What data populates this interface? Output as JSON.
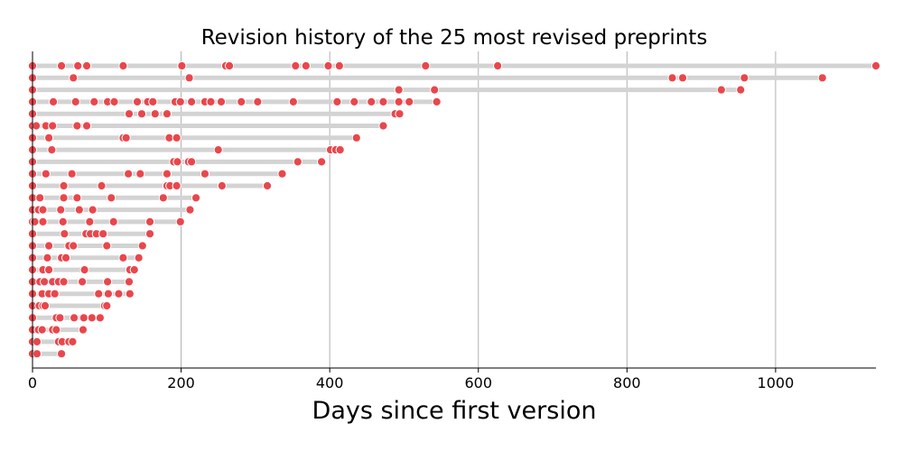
{
  "chart_data": {
    "type": "scatter",
    "title": "Revision history of the 25 most revised preprints",
    "xlabel": "Days since first version",
    "ylabel": "",
    "xlim": [
      0,
      1135
    ],
    "xticks": [
      0,
      200,
      400,
      600,
      800,
      1000
    ],
    "grid": "vertical",
    "colors": {
      "point": "#e8474c",
      "point_edge": "#ffffff",
      "bar": "#d3d3d3",
      "grid": "#b0b0b0"
    },
    "series": [
      {
        "values": [
          0,
          39,
          61,
          73,
          122,
          201,
          260,
          265,
          354,
          368,
          398,
          413,
          529,
          626,
          1135
        ]
      },
      {
        "values": [
          0,
          55,
          211,
          861,
          875,
          958,
          1063
        ]
      },
      {
        "values": [
          0,
          493,
          541,
          927,
          953
        ]
      },
      {
        "values": [
          0,
          28,
          58,
          83,
          101,
          110,
          141,
          155,
          162,
          192,
          199,
          214,
          232,
          240,
          254,
          281,
          303,
          351,
          410,
          433,
          456,
          472,
          493,
          507,
          544
        ]
      },
      {
        "values": [
          0,
          130,
          147,
          165,
          181,
          488,
          494
        ]
      },
      {
        "values": [
          0,
          5,
          18,
          27,
          60,
          73,
          472
        ]
      },
      {
        "values": [
          0,
          22,
          122,
          126,
          184,
          194,
          436
        ]
      },
      {
        "values": [
          0,
          26,
          250,
          401,
          408,
          414
        ]
      },
      {
        "values": [
          0,
          190,
          195,
          210,
          214,
          357,
          389
        ]
      },
      {
        "values": [
          0,
          18,
          53,
          129,
          145,
          181,
          232,
          336
        ]
      },
      {
        "values": [
          0,
          42,
          93,
          181,
          185,
          194,
          255,
          316
        ]
      },
      {
        "values": [
          0,
          10,
          42,
          60,
          106,
          176,
          220
        ]
      },
      {
        "values": [
          0,
          8,
          14,
          38,
          63,
          81,
          212
        ]
      },
      {
        "values": [
          0,
          3,
          14,
          41,
          77,
          109,
          158,
          199
        ]
      },
      {
        "values": [
          0,
          43,
          72,
          78,
          86,
          95,
          158
        ]
      },
      {
        "values": [
          0,
          22,
          49,
          55,
          100,
          148
        ]
      },
      {
        "values": [
          0,
          20,
          39,
          45,
          122,
          143
        ]
      },
      {
        "values": [
          0,
          14,
          22,
          70,
          131,
          137
        ]
      },
      {
        "values": [
          0,
          10,
          16,
          27,
          35,
          42,
          67,
          101,
          130
        ]
      },
      {
        "values": [
          0,
          13,
          22,
          30,
          89,
          102,
          116,
          131
        ]
      },
      {
        "values": [
          0,
          9,
          14,
          17,
          97,
          100
        ]
      },
      {
        "values": [
          0,
          32,
          37,
          56,
          69,
          80,
          91
        ]
      },
      {
        "values": [
          0,
          8,
          13,
          27,
          32,
          68
        ]
      },
      {
        "values": [
          0,
          6,
          35,
          40,
          49,
          54
        ]
      },
      {
        "values": [
          0,
          6,
          39
        ]
      }
    ]
  }
}
